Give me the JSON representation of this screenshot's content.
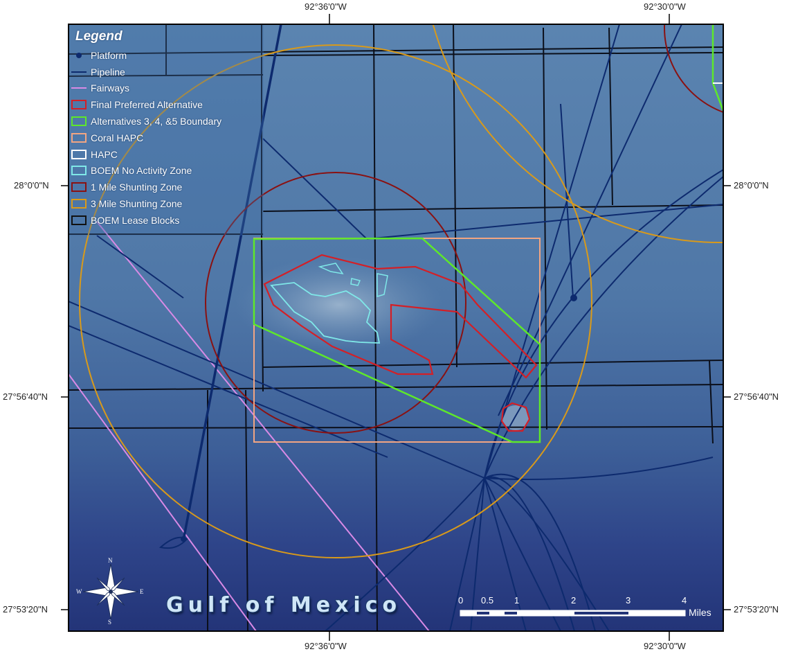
{
  "map": {
    "title_label": "Gulf of Mexico",
    "coordinates": {
      "top_left": "92°36'0\"W",
      "top_right": "92°30'0\"W",
      "bottom_left": "92°36'0\"W",
      "bottom_right": "92°30'0\"W",
      "left_1": "28°0'0\"N",
      "left_2": "27°56'40\"N",
      "left_3": "27°53'20\"N",
      "right_1": "28°0'0\"N",
      "right_2": "27°56'40\"N",
      "right_3": "27°53'20\"N"
    }
  },
  "legend": {
    "title": "Legend",
    "items": [
      {
        "label": "Platform",
        "symbol": "dot",
        "color": "#0d2a6e"
      },
      {
        "label": "Pipeline",
        "symbol": "line",
        "color": "#0d2a6e"
      },
      {
        "label": "Fairways",
        "symbol": "line",
        "color": "#d98ae6"
      },
      {
        "label": "Final Preferred Alternative",
        "symbol": "box",
        "color": "#d41f26"
      },
      {
        "label": "Alternatives 3, 4, &5 Boundary",
        "symbol": "box",
        "color": "#5ee82a"
      },
      {
        "label": "Coral HAPC",
        "symbol": "box",
        "color": "#f2a582"
      },
      {
        "label": "HAPC",
        "symbol": "box",
        "color": "#ffffff"
      },
      {
        "label": "BOEM No Activity Zone",
        "symbol": "box",
        "color": "#7fe8e8"
      },
      {
        "label": "1 Mile Shunting Zone",
        "symbol": "box",
        "color": "#8a1111"
      },
      {
        "label": "3 Mile Shunting Zone",
        "symbol": "box",
        "color": "#d99a1a"
      },
      {
        "label": "BOEM Lease Blocks",
        "symbol": "box",
        "color": "#111111"
      }
    ]
  },
  "scale_bar": {
    "ticks": [
      "0",
      "0.5",
      "1",
      "2",
      "3",
      "4"
    ],
    "unit": "Miles"
  },
  "north_arrow": {
    "n": "N",
    "s": "S",
    "e": "E",
    "w": "W"
  }
}
